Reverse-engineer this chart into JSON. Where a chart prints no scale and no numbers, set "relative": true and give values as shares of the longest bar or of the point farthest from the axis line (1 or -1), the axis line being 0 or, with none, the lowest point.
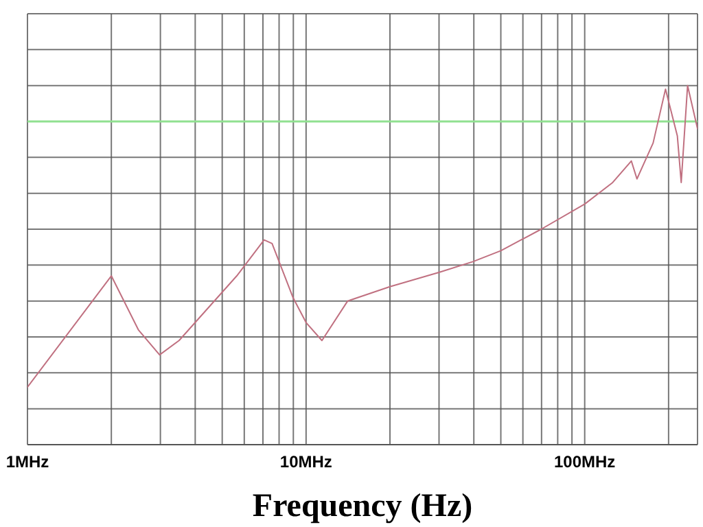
{
  "chart_data": {
    "type": "line",
    "xlabel": "Frequency (Hz)",
    "log": "x",
    "relative": true,
    "grid": true,
    "legend": false,
    "marker": "none",
    "line_style": "solid",
    "x": [
      1,
      2.0,
      2.5,
      2.98,
      3.5,
      5.64,
      7.07,
      7.55,
      8.97,
      10,
      11.4,
      14.1,
      20,
      30.1,
      39.8,
      50,
      69.8,
      100,
      126,
      147,
      154,
      176,
      195,
      215,
      222,
      234,
      254
    ],
    "series": [
      {
        "color": "#c07080",
        "values": [
          0.16,
          0.47,
          0.32,
          0.25,
          0.29,
          0.47,
          0.57,
          0.56,
          0.41,
          0.34,
          0.29,
          0.4,
          0.44,
          0.48,
          0.51,
          0.54,
          0.6,
          0.67,
          0.73,
          0.79,
          0.74,
          0.84,
          0.99,
          0.86,
          0.73,
          1.0,
          0.88
        ]
      }
    ],
    "xlim": [
      1,
      254
    ],
    "xticks": [
      {
        "value": 1,
        "label": "1MHz"
      },
      {
        "value": 2,
        "label": null
      },
      {
        "value": 3,
        "label": null
      },
      {
        "value": 4,
        "label": null
      },
      {
        "value": 5,
        "label": null
      },
      {
        "value": 6,
        "label": null
      },
      {
        "value": 7,
        "label": null
      },
      {
        "value": 8,
        "label": null
      },
      {
        "value": 9,
        "label": null
      },
      {
        "value": 10,
        "label": "10MHz"
      },
      {
        "value": 20,
        "label": null
      },
      {
        "value": 30,
        "label": null
      },
      {
        "value": 40,
        "label": null
      },
      {
        "value": 50,
        "label": null
      },
      {
        "value": 60,
        "label": null
      },
      {
        "value": 70,
        "label": null
      },
      {
        "value": 80,
        "label": null
      },
      {
        "value": 90,
        "label": null
      },
      {
        "value": 100,
        "label": "100MHz"
      },
      {
        "value": 200,
        "label": null
      }
    ],
    "ref_lines": [
      {
        "axis": "y",
        "value": 0.9,
        "color": "#90e090"
      }
    ]
  }
}
